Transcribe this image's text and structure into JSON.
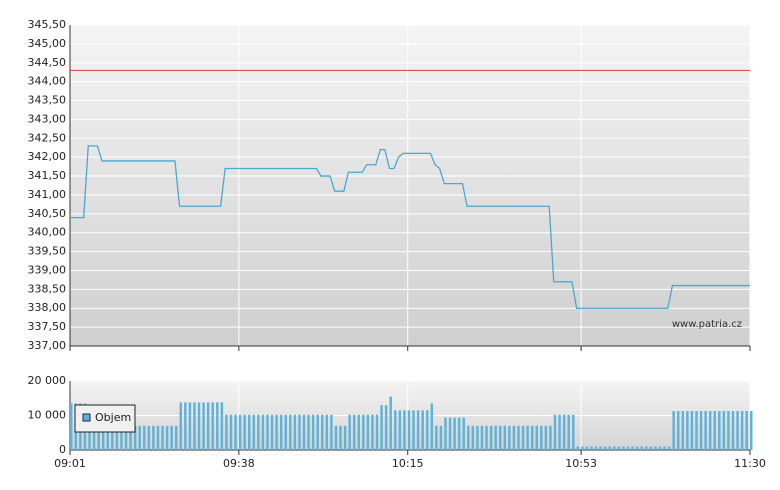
{
  "chart_data": [
    {
      "type": "line",
      "x": [
        "09:01",
        "09:04",
        "09:05",
        "09:07",
        "09:08",
        "09:24",
        "09:25",
        "09:34",
        "09:35",
        "09:55",
        "09:56",
        "09:58",
        "09:59",
        "10:01",
        "10:02",
        "10:05",
        "10:06",
        "10:08",
        "10:09",
        "10:10",
        "10:11",
        "10:12",
        "10:13",
        "10:14",
        "10:20",
        "10:21",
        "10:22",
        "10:23",
        "10:27",
        "10:28",
        "10:46",
        "10:47",
        "10:51",
        "10:52",
        "11:12",
        "11:13",
        "11:30"
      ],
      "values": [
        340.4,
        340.4,
        342.3,
        342.3,
        341.9,
        341.9,
        340.7,
        340.7,
        341.7,
        341.7,
        341.5,
        341.5,
        341.1,
        341.1,
        341.6,
        341.6,
        341.8,
        341.8,
        342.2,
        342.2,
        341.7,
        341.7,
        342.0,
        342.1,
        342.1,
        341.8,
        341.7,
        341.3,
        341.3,
        340.7,
        340.7,
        338.7,
        338.7,
        338.0,
        338.0,
        338.6,
        338.6
      ],
      "color": "#4aa8d0",
      "hline": {
        "value": 344.3,
        "color": "#e03a3a"
      },
      "watermark": "www.patria.cz",
      "xlim": [
        "09:01",
        "11:30"
      ],
      "xticks": [
        "09:01",
        "09:38",
        "10:15",
        "10:53",
        "11:30"
      ],
      "ylim": [
        337,
        345.5
      ],
      "yticks": [
        {
          "value": 337,
          "label": "337,00"
        },
        {
          "value": 337.5,
          "label": "337,50"
        },
        {
          "value": 338,
          "label": "338,00"
        },
        {
          "value": 338.5,
          "label": "338,50"
        },
        {
          "value": 339,
          "label": "339,00"
        },
        {
          "value": 339.5,
          "label": "339,50"
        },
        {
          "value": 340,
          "label": "340,00"
        },
        {
          "value": 340.5,
          "label": "340,50"
        },
        {
          "value": 341,
          "label": "341,00"
        },
        {
          "value": 341.5,
          "label": "341,50"
        },
        {
          "value": 342,
          "label": "342,00"
        },
        {
          "value": 342.5,
          "label": "342,50"
        },
        {
          "value": 343,
          "label": "343,00"
        },
        {
          "value": 343.5,
          "label": "343,50"
        },
        {
          "value": 344,
          "label": "344,00"
        },
        {
          "value": 344.5,
          "label": "344,50"
        },
        {
          "value": 345,
          "label": "345,00"
        },
        {
          "value": 345.5,
          "label": "345,50"
        }
      ],
      "grid": true
    },
    {
      "type": "bar",
      "x": [
        "09:01",
        "09:02",
        "09:03",
        "09:04",
        "09:05",
        "09:06",
        "09:07",
        "09:08",
        "09:09",
        "09:10",
        "09:11",
        "09:12",
        "09:13",
        "09:14",
        "09:15",
        "09:16",
        "09:17",
        "09:18",
        "09:19",
        "09:20",
        "09:21",
        "09:22",
        "09:23",
        "09:24",
        "09:25",
        "09:26",
        "09:27",
        "09:28",
        "09:29",
        "09:30",
        "09:31",
        "09:32",
        "09:33",
        "09:34",
        "09:35",
        "09:36",
        "09:37",
        "09:38",
        "09:39",
        "09:40",
        "09:41",
        "09:42",
        "09:43",
        "09:44",
        "09:45",
        "09:46",
        "09:47",
        "09:48",
        "09:49",
        "09:50",
        "09:51",
        "09:52",
        "09:53",
        "09:54",
        "09:55",
        "09:56",
        "09:57",
        "09:58",
        "09:59",
        "10:00",
        "10:01",
        "10:02",
        "10:03",
        "10:04",
        "10:05",
        "10:06",
        "10:07",
        "10:08",
        "10:09",
        "10:10",
        "10:11",
        "10:12",
        "10:13",
        "10:14",
        "10:15",
        "10:16",
        "10:17",
        "10:18",
        "10:19",
        "10:20",
        "10:21",
        "10:22",
        "10:23",
        "10:24",
        "10:25",
        "10:26",
        "10:27",
        "10:28",
        "10:29",
        "10:30",
        "10:31",
        "10:32",
        "10:33",
        "10:34",
        "10:35",
        "10:36",
        "10:37",
        "10:38",
        "10:39",
        "10:40",
        "10:41",
        "10:42",
        "10:43",
        "10:44",
        "10:45",
        "10:46",
        "10:47",
        "10:48",
        "10:49",
        "10:50",
        "10:51",
        "10:52",
        "10:53",
        "10:54",
        "10:55",
        "10:56",
        "10:57",
        "10:58",
        "10:59",
        "11:00",
        "11:01",
        "11:02",
        "11:03",
        "11:04",
        "11:05",
        "11:06",
        "11:07",
        "11:08",
        "11:09",
        "11:10",
        "11:11",
        "11:12",
        "11:13",
        "11:14",
        "11:15",
        "11:16",
        "11:17",
        "11:18",
        "11:19",
        "11:20",
        "11:21",
        "11:22",
        "11:23",
        "11:24",
        "11:25",
        "11:26",
        "11:27",
        "11:28",
        "11:29",
        "11:30"
      ],
      "series": [
        {
          "name": "Objem",
          "color": "#62b2d8",
          "values": [
            13500,
            13500,
            13500,
            13500,
            7000,
            7000,
            7000,
            7000,
            7000,
            7000,
            7000,
            7000,
            7000,
            7000,
            7000,
            7000,
            7000,
            7000,
            7000,
            7000,
            7000,
            7000,
            7000,
            7000,
            13800,
            13800,
            13800,
            13800,
            13800,
            13800,
            13800,
            13800,
            13800,
            13800,
            10200,
            10200,
            10200,
            10200,
            10200,
            10200,
            10200,
            10200,
            10200,
            10200,
            10200,
            10200,
            10200,
            10200,
            10200,
            10200,
            10200,
            10200,
            10200,
            10200,
            10200,
            10200,
            10200,
            10200,
            7000,
            7000,
            7000,
            10200,
            10200,
            10200,
            10200,
            10200,
            10200,
            10200,
            13000,
            13000,
            15500,
            11500,
            11500,
            11500,
            11500,
            11500,
            11500,
            11500,
            11500,
            13500,
            7000,
            7000,
            9400,
            9400,
            9400,
            9400,
            9400,
            7000,
            7000,
            7000,
            7000,
            7000,
            7000,
            7000,
            7000,
            7000,
            7000,
            7000,
            7000,
            7000,
            7000,
            7000,
            7000,
            7000,
            7000,
            7000,
            10200,
            10200,
            10200,
            10200,
            10200,
            1000,
            1000,
            1000,
            1000,
            1000,
            1000,
            1000,
            1000,
            1000,
            1000,
            1000,
            1000,
            1000,
            1000,
            1000,
            1000,
            1000,
            1000,
            1000,
            1000,
            1000,
            11300,
            11300,
            11300,
            11300,
            11300,
            11300,
            11300,
            11300,
            11300,
            11300,
            11300,
            11300,
            11300,
            11300,
            11300,
            11300,
            11300,
            11300
          ]
        }
      ],
      "xlim": [
        "09:01",
        "11:30"
      ],
      "xticks": [
        "09:01",
        "09:38",
        "10:15",
        "10:53",
        "11:30"
      ],
      "ylim": [
        0,
        20000
      ],
      "yticks": [
        0,
        {
          "value": 10000,
          "label": "10 000"
        },
        {
          "value": 20000,
          "label": "20 000"
        }
      ],
      "grid": true
    }
  ]
}
